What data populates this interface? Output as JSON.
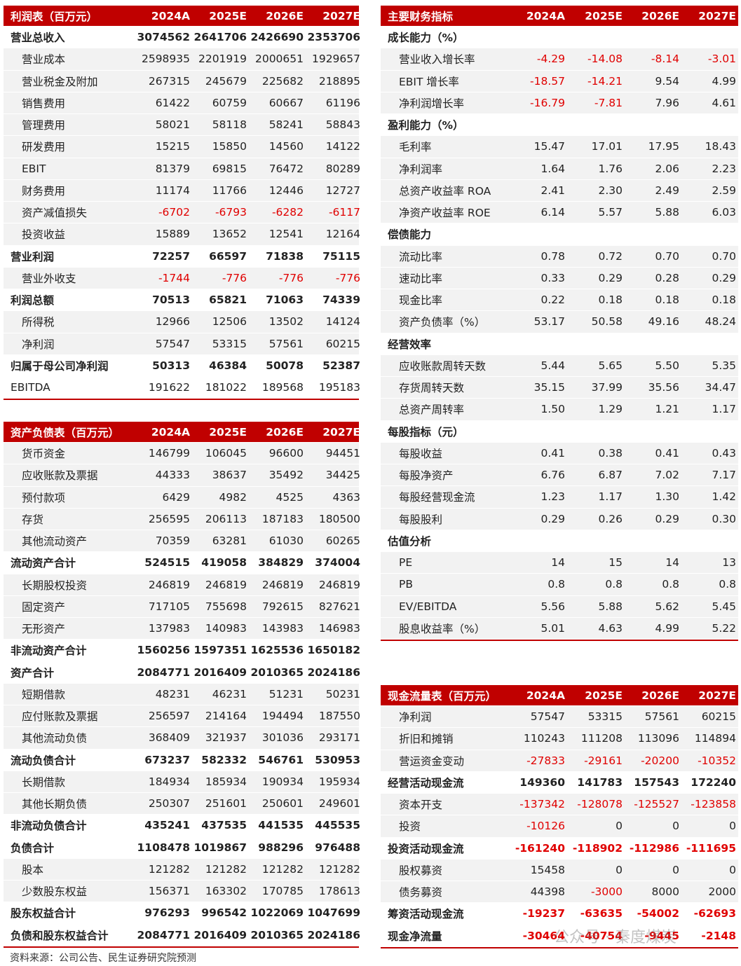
{
  "tables": [
    {
      "title": "利润表（百万元）",
      "columns": [
        "2024A",
        "2025E",
        "2026E",
        "2027E"
      ],
      "rows": [
        {
          "label": "营业总收入",
          "kind": "total",
          "values": [
            "3074562",
            "2641706",
            "2426690",
            "2353706"
          ]
        },
        {
          "label": "营业成本",
          "kind": "item",
          "values": [
            "2598935",
            "2201919",
            "2000651",
            "1929657"
          ]
        },
        {
          "label": "营业税金及附加",
          "kind": "item",
          "values": [
            "267315",
            "245679",
            "225682",
            "218895"
          ]
        },
        {
          "label": "销售费用",
          "kind": "item",
          "values": [
            "61422",
            "60759",
            "60667",
            "61196"
          ]
        },
        {
          "label": "管理费用",
          "kind": "item",
          "values": [
            "58021",
            "58118",
            "58241",
            "58843"
          ]
        },
        {
          "label": "研发费用",
          "kind": "item",
          "values": [
            "15215",
            "15850",
            "14560",
            "14122"
          ]
        },
        {
          "label": "EBIT",
          "kind": "item",
          "values": [
            "81379",
            "69815",
            "76472",
            "80289"
          ]
        },
        {
          "label": "财务费用",
          "kind": "item",
          "values": [
            "11174",
            "11766",
            "12446",
            "12727"
          ]
        },
        {
          "label": "资产减值损失",
          "kind": "item",
          "values": [
            "-6702",
            "-6793",
            "-6282",
            "-6117"
          ]
        },
        {
          "label": "投资收益",
          "kind": "item",
          "values": [
            "15889",
            "13652",
            "12541",
            "12164"
          ]
        },
        {
          "label": "营业利润",
          "kind": "total",
          "values": [
            "72257",
            "66597",
            "71838",
            "75115"
          ]
        },
        {
          "label": "营业外收支",
          "kind": "item",
          "values": [
            "-1744",
            "-776",
            "-776",
            "-776"
          ]
        },
        {
          "label": "利润总额",
          "kind": "total",
          "values": [
            "70513",
            "65821",
            "71063",
            "74339"
          ]
        },
        {
          "label": "所得税",
          "kind": "item",
          "values": [
            "12966",
            "12506",
            "13502",
            "14124"
          ]
        },
        {
          "label": "净利润",
          "kind": "item",
          "values": [
            "57547",
            "53315",
            "57561",
            "60215"
          ]
        },
        {
          "label": "归属于母公司净利润",
          "kind": "total",
          "values": [
            "50313",
            "46384",
            "50078",
            "52387"
          ]
        },
        {
          "label": "EBITDA",
          "kind": "plain",
          "values": [
            "191622",
            "181022",
            "189568",
            "195183"
          ]
        }
      ]
    },
    {
      "title": "资产负债表（百万元）",
      "columns": [
        "2024A",
        "2025E",
        "2026E",
        "2027E"
      ],
      "rows": [
        {
          "label": "货币资金",
          "kind": "item",
          "values": [
            "146799",
            "106045",
            "96600",
            "94451"
          ]
        },
        {
          "label": "应收账款及票据",
          "kind": "item",
          "values": [
            "44333",
            "38637",
            "35492",
            "34425"
          ]
        },
        {
          "label": "预付款项",
          "kind": "item",
          "values": [
            "6429",
            "4982",
            "4525",
            "4363"
          ]
        },
        {
          "label": "存货",
          "kind": "item",
          "values": [
            "256595",
            "206113",
            "187183",
            "180500"
          ]
        },
        {
          "label": "其他流动资产",
          "kind": "item",
          "values": [
            "70359",
            "63281",
            "61030",
            "60265"
          ]
        },
        {
          "label": "流动资产合计",
          "kind": "total",
          "values": [
            "524515",
            "419058",
            "384829",
            "374004"
          ]
        },
        {
          "label": "长期股权投资",
          "kind": "item",
          "values": [
            "246819",
            "246819",
            "246819",
            "246819"
          ]
        },
        {
          "label": "固定资产",
          "kind": "item",
          "values": [
            "717105",
            "755698",
            "792615",
            "827621"
          ]
        },
        {
          "label": "无形资产",
          "kind": "item",
          "values": [
            "137983",
            "140983",
            "143983",
            "146983"
          ]
        },
        {
          "label": "非流动资产合计",
          "kind": "total",
          "values": [
            "1560256",
            "1597351",
            "1625536",
            "1650182"
          ]
        },
        {
          "label": "资产合计",
          "kind": "total",
          "values": [
            "2084771",
            "2016409",
            "2010365",
            "2024186"
          ]
        },
        {
          "label": "短期借款",
          "kind": "item",
          "values": [
            "48231",
            "46231",
            "51231",
            "50231"
          ]
        },
        {
          "label": "应付账款及票据",
          "kind": "item",
          "values": [
            "256597",
            "214164",
            "194494",
            "187550"
          ]
        },
        {
          "label": "其他流动负债",
          "kind": "item",
          "values": [
            "368409",
            "321937",
            "301036",
            "293171"
          ]
        },
        {
          "label": "流动负债合计",
          "kind": "total",
          "values": [
            "673237",
            "582332",
            "546761",
            "530953"
          ]
        },
        {
          "label": "长期借款",
          "kind": "item",
          "values": [
            "184934",
            "185934",
            "190934",
            "195934"
          ]
        },
        {
          "label": "其他长期负债",
          "kind": "item",
          "values": [
            "250307",
            "251601",
            "250601",
            "249601"
          ]
        },
        {
          "label": "非流动负债合计",
          "kind": "total",
          "values": [
            "435241",
            "437535",
            "441535",
            "445535"
          ]
        },
        {
          "label": "负债合计",
          "kind": "total",
          "values": [
            "1108478",
            "1019867",
            "988296",
            "976488"
          ]
        },
        {
          "label": "股本",
          "kind": "item",
          "values": [
            "121282",
            "121282",
            "121282",
            "121282"
          ]
        },
        {
          "label": "少数股东权益",
          "kind": "item",
          "values": [
            "156371",
            "163302",
            "170785",
            "178613"
          ]
        },
        {
          "label": "股东权益合计",
          "kind": "total",
          "values": [
            "976293",
            "996542",
            "1022069",
            "1047699"
          ]
        },
        {
          "label": "负债和股东权益合计",
          "kind": "total",
          "values": [
            "2084771",
            "2016409",
            "2010365",
            "2024186"
          ]
        }
      ]
    },
    {
      "title": "主要财务指标",
      "columns": [
        "2024A",
        "2025E",
        "2026E",
        "2027E"
      ],
      "rows": [
        {
          "label": "成长能力（%）",
          "kind": "section",
          "values": []
        },
        {
          "label": "营业收入增长率",
          "kind": "item",
          "values": [
            "-4.29",
            "-14.08",
            "-8.14",
            "-3.01"
          ]
        },
        {
          "label": "EBIT 增长率",
          "kind": "item",
          "values": [
            "-18.57",
            "-14.21",
            "9.54",
            "4.99"
          ]
        },
        {
          "label": "净利润增长率",
          "kind": "item",
          "values": [
            "-16.79",
            "-7.81",
            "7.96",
            "4.61"
          ]
        },
        {
          "label": "盈利能力（%）",
          "kind": "section",
          "values": []
        },
        {
          "label": "毛利率",
          "kind": "item",
          "values": [
            "15.47",
            "17.01",
            "17.95",
            "18.43"
          ]
        },
        {
          "label": "净利润率",
          "kind": "item",
          "values": [
            "1.64",
            "1.76",
            "2.06",
            "2.23"
          ]
        },
        {
          "label": "总资产收益率 ROA",
          "kind": "item",
          "values": [
            "2.41",
            "2.30",
            "2.49",
            "2.59"
          ]
        },
        {
          "label": "净资产收益率 ROE",
          "kind": "item",
          "values": [
            "6.14",
            "5.57",
            "5.88",
            "6.03"
          ]
        },
        {
          "label": "偿债能力",
          "kind": "section",
          "values": []
        },
        {
          "label": "流动比率",
          "kind": "item",
          "values": [
            "0.78",
            "0.72",
            "0.70",
            "0.70"
          ]
        },
        {
          "label": "速动比率",
          "kind": "item",
          "values": [
            "0.33",
            "0.29",
            "0.28",
            "0.29"
          ]
        },
        {
          "label": "现金比率",
          "kind": "item",
          "values": [
            "0.22",
            "0.18",
            "0.18",
            "0.18"
          ]
        },
        {
          "label": "资产负债率（%）",
          "kind": "item",
          "values": [
            "53.17",
            "50.58",
            "49.16",
            "48.24"
          ]
        },
        {
          "label": "经营效率",
          "kind": "section",
          "values": []
        },
        {
          "label": "应收账款周转天数",
          "kind": "item",
          "values": [
            "5.44",
            "5.65",
            "5.50",
            "5.35"
          ]
        },
        {
          "label": "存货周转天数",
          "kind": "item",
          "values": [
            "35.15",
            "37.99",
            "35.56",
            "34.47"
          ]
        },
        {
          "label": "总资产周转率",
          "kind": "item",
          "values": [
            "1.50",
            "1.29",
            "1.21",
            "1.17"
          ]
        },
        {
          "label": "每股指标（元）",
          "kind": "section",
          "values": []
        },
        {
          "label": "每股收益",
          "kind": "item",
          "values": [
            "0.41",
            "0.38",
            "0.41",
            "0.43"
          ]
        },
        {
          "label": "每股净资产",
          "kind": "item",
          "values": [
            "6.76",
            "6.87",
            "7.02",
            "7.17"
          ]
        },
        {
          "label": "每股经营现金流",
          "kind": "item",
          "values": [
            "1.23",
            "1.17",
            "1.30",
            "1.42"
          ]
        },
        {
          "label": "每股股利",
          "kind": "item",
          "values": [
            "0.29",
            "0.26",
            "0.29",
            "0.30"
          ]
        },
        {
          "label": "估值分析",
          "kind": "section",
          "values": []
        },
        {
          "label": "PE",
          "kind": "item",
          "values": [
            "14",
            "15",
            "14",
            "13"
          ]
        },
        {
          "label": "PB",
          "kind": "item",
          "values": [
            "0.8",
            "0.8",
            "0.8",
            "0.8"
          ]
        },
        {
          "label": "EV/EBITDA",
          "kind": "item",
          "values": [
            "5.56",
            "5.88",
            "5.62",
            "5.45"
          ]
        },
        {
          "label": "股息收益率（%）",
          "kind": "item",
          "values": [
            "5.01",
            "4.63",
            "4.99",
            "5.22"
          ]
        }
      ]
    },
    {
      "title": "现金流量表（百万元）",
      "columns": [
        "2024A",
        "2025E",
        "2026E",
        "2027E"
      ],
      "rows": [
        {
          "label": "净利润",
          "kind": "item",
          "values": [
            "57547",
            "53315",
            "57561",
            "60215"
          ]
        },
        {
          "label": "折旧和摊销",
          "kind": "item",
          "values": [
            "110243",
            "111208",
            "113096",
            "114894"
          ]
        },
        {
          "label": "营运资金变动",
          "kind": "item",
          "values": [
            "-27833",
            "-29161",
            "-20200",
            "-10352"
          ]
        },
        {
          "label": "经营活动现金流",
          "kind": "total",
          "values": [
            "149360",
            "141783",
            "157543",
            "172240"
          ]
        },
        {
          "label": "资本开支",
          "kind": "item",
          "values": [
            "-137342",
            "-128078",
            "-125527",
            "-123858"
          ]
        },
        {
          "label": "投资",
          "kind": "item",
          "values": [
            "-10126",
            "0",
            "0",
            "0"
          ]
        },
        {
          "label": "投资活动现金流",
          "kind": "total",
          "values": [
            "-161240",
            "-118902",
            "-112986",
            "-111695"
          ]
        },
        {
          "label": "股权募资",
          "kind": "item",
          "values": [
            "15458",
            "0",
            "0",
            "0"
          ]
        },
        {
          "label": "债务募资",
          "kind": "item",
          "values": [
            "44398",
            "-3000",
            "8000",
            "2000"
          ]
        },
        {
          "label": "筹资活动现金流",
          "kind": "total",
          "values": [
            "-19237",
            "-63635",
            "-54002",
            "-62693"
          ]
        },
        {
          "label": "现金净流量",
          "kind": "total",
          "values": [
            "-30464",
            "-40754",
            "-9445",
            "-2148"
          ]
        }
      ]
    }
  ],
  "footer": "资料来源：公司公告、民生证券研究院预测",
  "watermark": "公众号 · 秦度煤炭"
}
